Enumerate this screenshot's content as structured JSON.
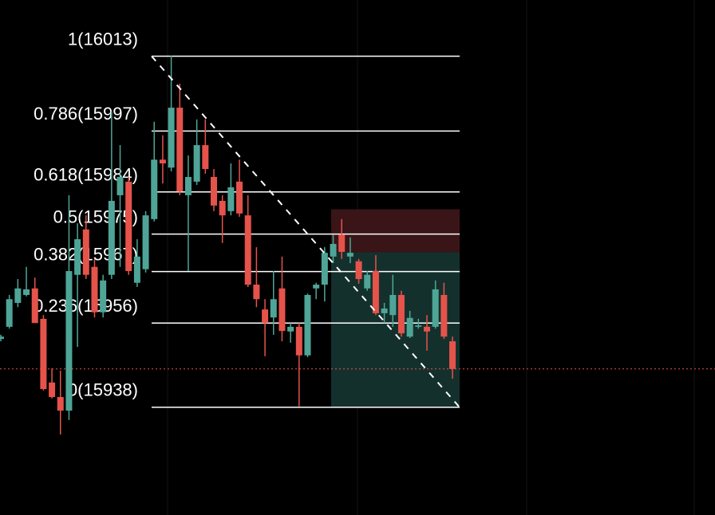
{
  "chart_data": {
    "type": "candlestick",
    "ylim": [
      15915,
      16025
    ],
    "up_color": "#4ea597",
    "down_color": "#e5534b",
    "grid": true,
    "open": [
      15952.6,
      15955.2,
      15960.3,
      15962.0,
      15963.4,
      15956.9,
      15943.3,
      15940.2,
      15937.3,
      15966.3,
      15976.0,
      15968.0,
      15958.3,
      15966.3,
      15983.3,
      15986.2,
      15964.6,
      15967.5,
      15978.2,
      15990.9,
      15989.2,
      16002.0,
      15983.3,
      15986.2,
      15994.0,
      15987.2,
      15982.1,
      15979.9,
      15986.2,
      15979.0,
      15964.2,
      15958.9,
      15957.2,
      15963.4,
      15954.2,
      15955.2,
      15949.1,
      15963.4,
      15964.2,
      15970.2,
      15974.9,
      15970.2,
      15969.2,
      15963.4,
      15967.1,
      15958.1,
      15957.7,
      15962.0,
      15953.1,
      15955.2,
      15955.2,
      15955.2,
      15962.0,
      15952.1
    ],
    "high": [
      15953.5,
      15962.0,
      15965.4,
      15968.0,
      15965.7,
      15957.7,
      15946.3,
      15945.8,
      15983.3,
      15977.3,
      15979.0,
      15969.7,
      15966.3,
      16001.2,
      15994.0,
      15987.2,
      15973.9,
      15979.9,
      15999.0,
      15996.1,
      16013.1,
      16007.1,
      15991.8,
      15999.5,
      15999.5,
      15988.9,
      15983.3,
      15990.1,
      15990.9,
      15983.3,
      15972.2,
      15961.1,
      15967.1,
      15970.2,
      15956.0,
      15956.0,
      15962.3,
      15964.6,
      15972.2,
      15974.8,
      15978.2,
      15974.3,
      15969.7,
      15967.1,
      15970.5,
      15960.3,
      15966.3,
      15962.9,
      15958.6,
      15956.9,
      15957.7,
      15965.1,
      15964.6,
      15953.1
    ],
    "low": [
      15952.1,
      15954.8,
      15959.4,
      15961.7,
      15956.0,
      15941.6,
      15939.9,
      15932.2,
      15935.3,
      15950.9,
      15965.4,
      15957.2,
      15957.2,
      15965.4,
      15968.0,
      15966.3,
      15963.7,
      15966.8,
      15977.7,
      15985.8,
      15988.4,
      15983.3,
      15967.1,
      15985.5,
      15987.9,
      15979.9,
      15973.1,
      15979.0,
      15978.7,
      15963.7,
      15959.4,
      15948.9,
      15953.5,
      15952.1,
      15951.8,
      15938.2,
      15948.7,
      15961.1,
      15960.6,
      15968.8,
      15969.7,
      15968.8,
      15964.4,
      15962.9,
      15957.7,
      15956.0,
      15955.2,
      15953.1,
      15952.8,
      15954.8,
      15950.1,
      15954.8,
      15952.6,
      15944.1
    ],
    "close": [
      15953.1,
      15961.1,
      15963.4,
      15963.2,
      15956.0,
      15941.9,
      15940.2,
      15937.3,
      15967.1,
      15973.9,
      15966.3,
      15958.3,
      15965.1,
      15982.1,
      15987.2,
      15967.1,
      15970.2,
      15979.0,
      15990.9,
      15990.1,
      16002.0,
      15984.1,
      15987.2,
      15994.0,
      15988.9,
      15981.1,
      15979.0,
      15985.0,
      15979.4,
      15964.2,
      15961.1,
      15956.0,
      15961.1,
      15954.3,
      15955.2,
      15949.1,
      15962.0,
      15964.2,
      15971.0,
      15972.9,
      15971.2,
      15971.0,
      15965.4,
      15966.3,
      15958.1,
      15959.1,
      15962.0,
      15953.8,
      15957.1,
      15955.5,
      15954.2,
      15963.2,
      15953.1,
      15946.2
    ],
    "fib_levels": [
      {
        "value": 16013,
        "label": "1(16013)"
      },
      {
        "value": 15997,
        "label": "0.786(15997)"
      },
      {
        "value": 15984,
        "label": "0.618(15984)"
      },
      {
        "value": 15975,
        "label": "0.5(15975)"
      },
      {
        "value": 15967,
        "label": "0.382(15967)"
      },
      {
        "value": 15956,
        "label": "0.236(15956)"
      },
      {
        "value": 15938,
        "label": "0(15938)"
      }
    ],
    "fib_color": "#ffffff",
    "trend_line": [
      16013,
      15938
    ],
    "position": {
      "stop": 15980.3,
      "entry": 15971.1,
      "target": 15938,
      "stop_color": "#3a1518",
      "target_color": "#14302d"
    },
    "last_price": 15946.2,
    "last_price_color": "#e5534b"
  }
}
